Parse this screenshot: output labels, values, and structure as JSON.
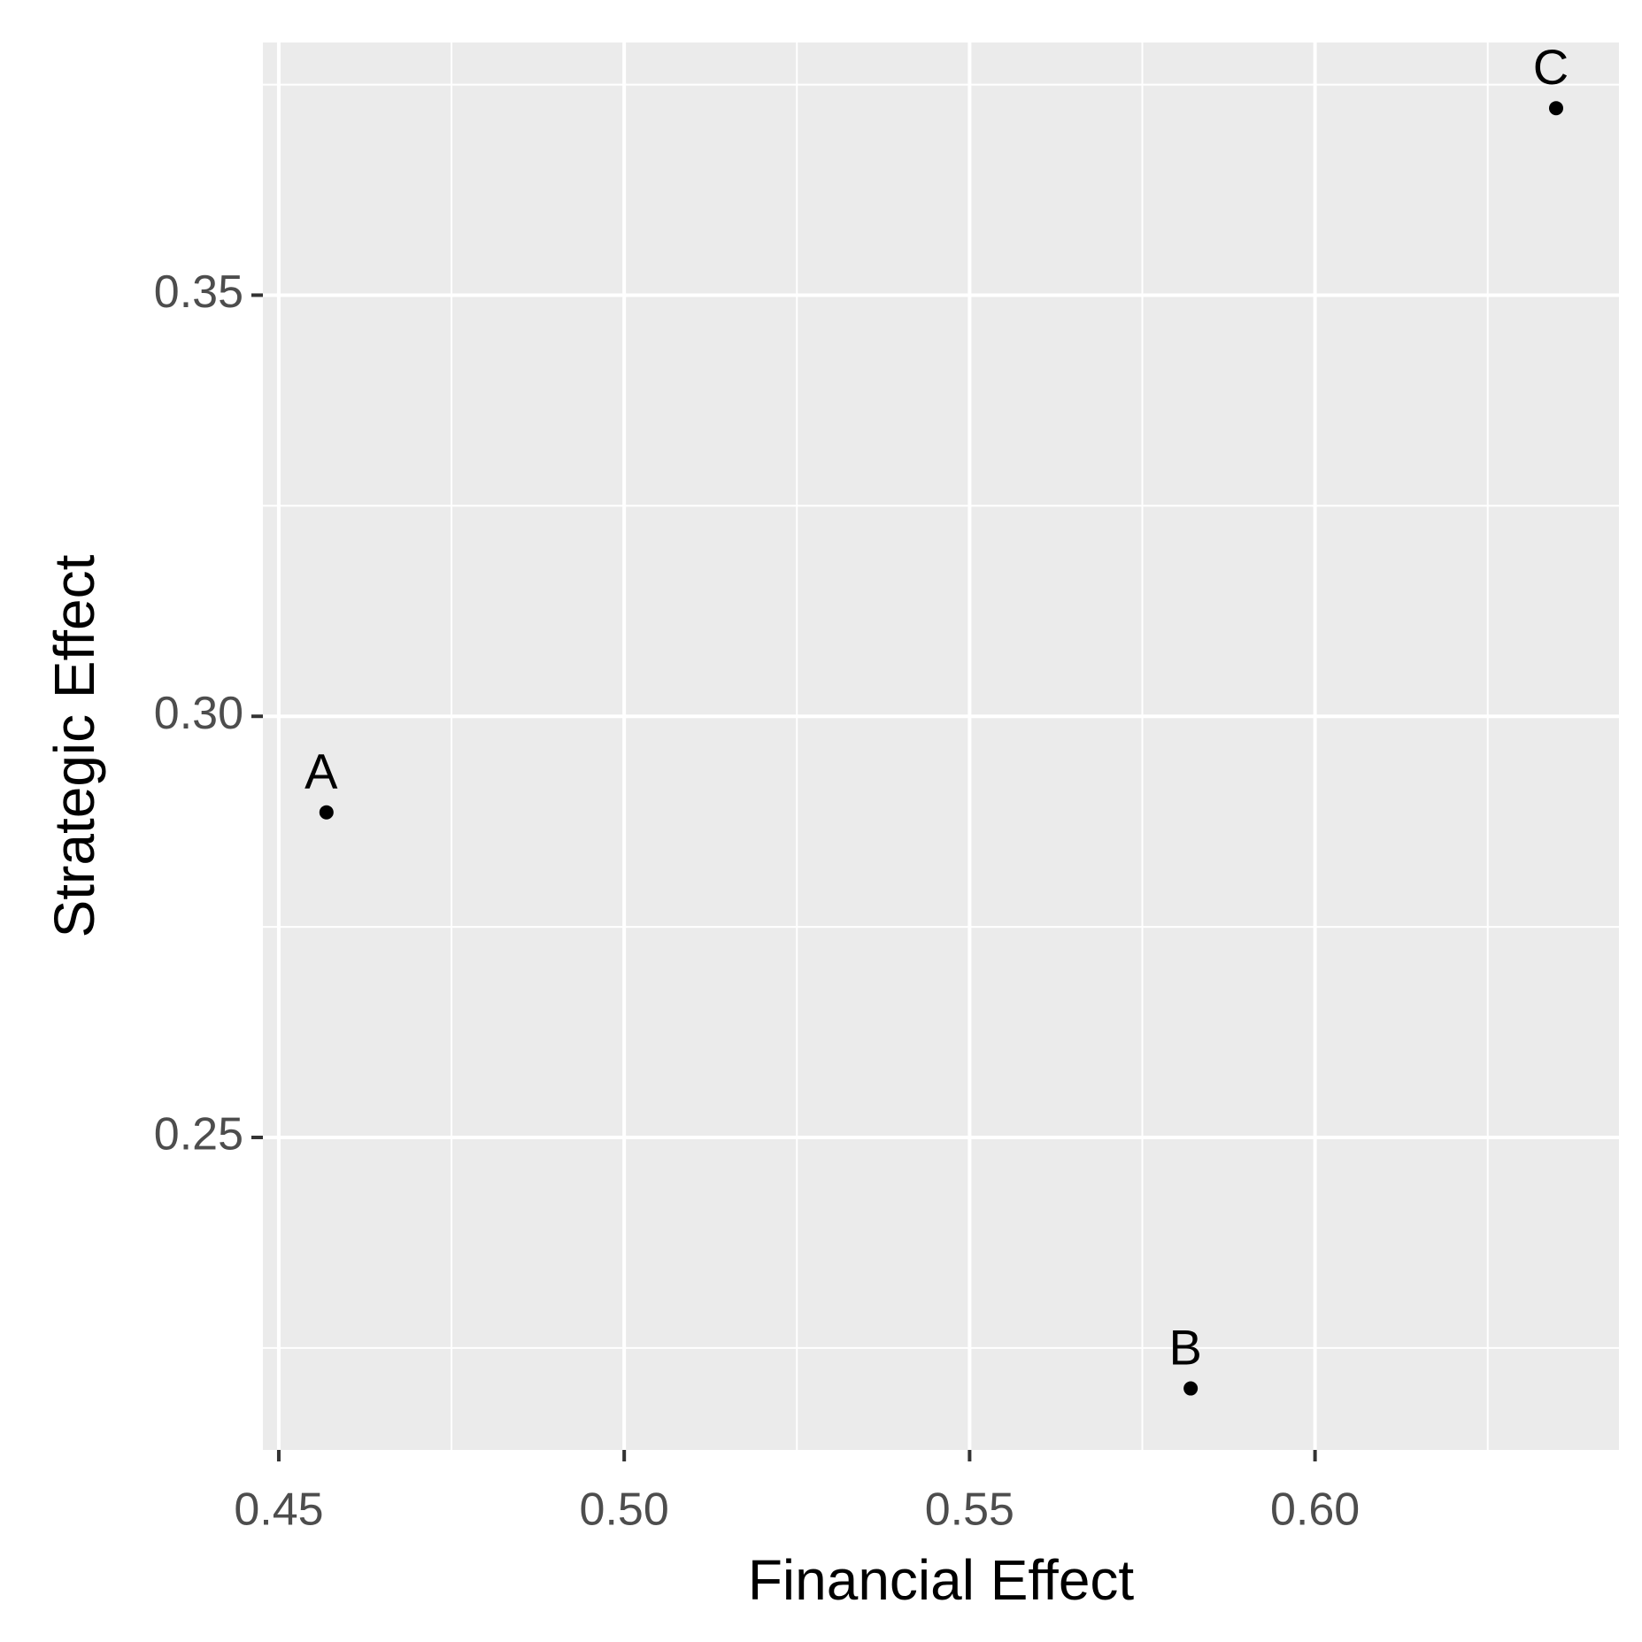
{
  "chart_data": {
    "type": "scatter",
    "x_label": "Financial Effect",
    "y_label": "Strategic Effect",
    "x": [
      0.4569,
      0.582,
      0.6349
    ],
    "values": [
      0.2886,
      0.2202,
      0.3722
    ],
    "labels": [
      "A",
      "B",
      "C"
    ],
    "color": "#000000",
    "xlim": [
      0.4477,
      0.644
    ],
    "ylim": [
      0.2129,
      0.38
    ],
    "xticks": [
      {
        "value": 0.45,
        "label": "0.45"
      },
      {
        "value": 0.5,
        "label": "0.50"
      },
      {
        "value": 0.55,
        "label": "0.55"
      },
      {
        "value": 0.6,
        "label": "0.60"
      }
    ],
    "yticks": [
      {
        "value": 0.25,
        "label": "0.25"
      },
      {
        "value": 0.3,
        "label": "0.30"
      },
      {
        "value": 0.35,
        "label": "0.35"
      }
    ],
    "grid": true,
    "minor_grid": true,
    "panel_color": "#ebebeb"
  }
}
